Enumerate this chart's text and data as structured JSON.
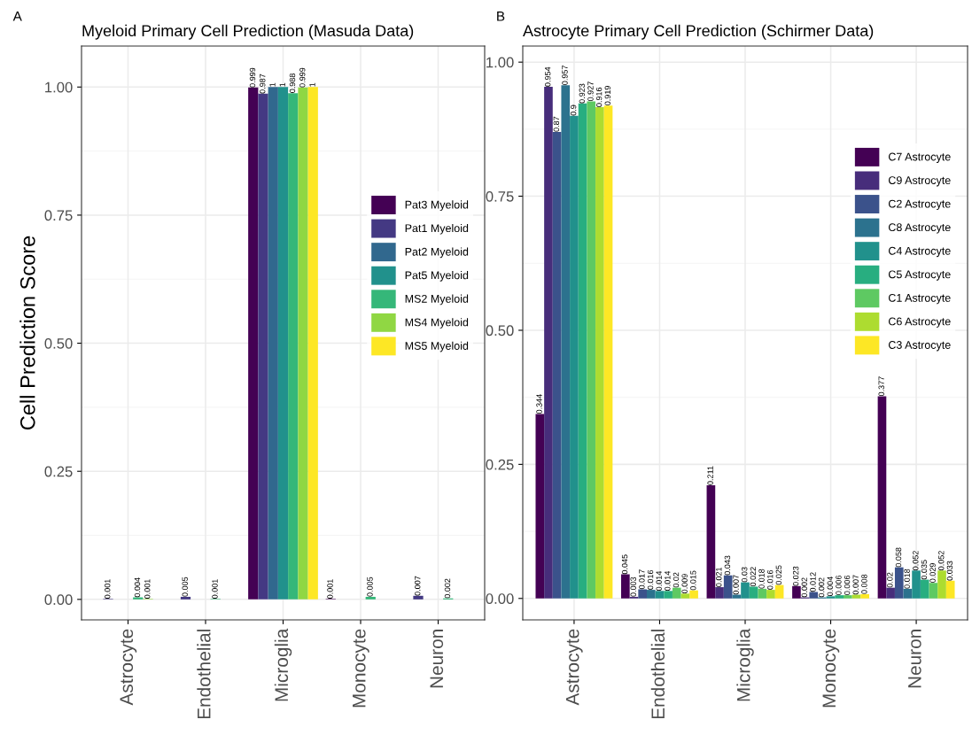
{
  "chart_data": [
    {
      "type": "bar",
      "title": "Myeloid Primary Cell Prediction (Masuda Data)",
      "ylabel": "Cell Prediction Score",
      "annotations": [
        "A"
      ],
      "categories": [
        "Astrocyte",
        "Endothelial",
        "Microglia",
        "Monocyte",
        "Neuron"
      ],
      "series": [
        {
          "name": "Pat3 Myeloid",
          "color": "#440154",
          "values": [
            null,
            null,
            0.999,
            0.001,
            null
          ]
        },
        {
          "name": "Pat1 Myeloid",
          "color": "#443983",
          "values": [
            0.001,
            0.005,
            0.987,
            null,
            0.007
          ]
        },
        {
          "name": "Pat2 Myeloid",
          "color": "#31688e",
          "values": [
            null,
            null,
            1,
            null,
            null
          ]
        },
        {
          "name": "Pat5 Myeloid",
          "color": "#21918c",
          "values": [
            null,
            null,
            1,
            null,
            null
          ]
        },
        {
          "name": "MS2 Myeloid",
          "color": "#35b779",
          "values": [
            0.004,
            0.001,
            0.988,
            0.005,
            0.002
          ]
        },
        {
          "name": "MS4 Myeloid",
          "color": "#90d743",
          "values": [
            0.001,
            null,
            0.999,
            null,
            null
          ]
        },
        {
          "name": "MS5 Myeloid",
          "color": "#fde725",
          "values": [
            null,
            null,
            1,
            null,
            null
          ]
        }
      ],
      "ylim": [
        -0.04,
        1.08
      ],
      "yticks": [
        {
          "value": 0,
          "label": "0.00"
        },
        {
          "value": 0.25,
          "label": "0.25"
        },
        {
          "value": 0.5,
          "label": "0.50"
        },
        {
          "value": 0.75,
          "label": "0.75"
        },
        {
          "value": 1,
          "label": "1.00"
        }
      ],
      "grid": true,
      "legend": "right",
      "data_labels": true
    },
    {
      "type": "bar",
      "title": "Astrocyte Primary Cell Prediction (Schirmer Data)",
      "annotations": [
        "B"
      ],
      "categories": [
        "Astrocyte",
        "Endothelial",
        "Microglia",
        "Monocyte",
        "Neuron"
      ],
      "series": [
        {
          "name": "C7 Astrocyte",
          "color": "#440154",
          "values": [
            0.344,
            0.045,
            0.211,
            0.023,
            0.377
          ]
        },
        {
          "name": "C9 Astrocyte",
          "color": "#472d7b",
          "values": [
            0.954,
            0.003,
            0.021,
            0.002,
            0.02
          ]
        },
        {
          "name": "C2 Astrocyte",
          "color": "#3b528b",
          "values": [
            0.87,
            0.017,
            0.043,
            0.012,
            0.058
          ]
        },
        {
          "name": "C8 Astrocyte",
          "color": "#2c728e",
          "values": [
            0.957,
            0.016,
            0.007,
            0.002,
            0.018
          ]
        },
        {
          "name": "C4 Astrocyte",
          "color": "#21918c",
          "values": [
            0.9,
            0.014,
            0.03,
            0.004,
            0.052
          ]
        },
        {
          "name": "C5 Astrocyte",
          "color": "#28ae80",
          "values": [
            0.923,
            0.014,
            0.022,
            0.006,
            0.035
          ]
        },
        {
          "name": "C1 Astrocyte",
          "color": "#5ec962",
          "values": [
            0.927,
            0.02,
            0.018,
            0.006,
            0.029
          ]
        },
        {
          "name": "C6 Astrocyte",
          "color": "#addc30",
          "values": [
            0.916,
            0.009,
            0.016,
            0.007,
            0.052
          ]
        },
        {
          "name": "C3 Astrocyte",
          "color": "#fde725",
          "values": [
            0.919,
            0.015,
            0.025,
            0.008,
            0.033
          ]
        }
      ],
      "ylim": [
        -0.04,
        1.03
      ],
      "yticks": [
        {
          "value": 0,
          "label": "0.00"
        },
        {
          "value": 0.25,
          "label": "0.25"
        },
        {
          "value": 0.5,
          "label": "0.50"
        },
        {
          "value": 0.75,
          "label": "0.75"
        },
        {
          "value": 1,
          "label": "1.00"
        }
      ],
      "grid": true,
      "legend": "top right",
      "data_labels": true
    }
  ]
}
